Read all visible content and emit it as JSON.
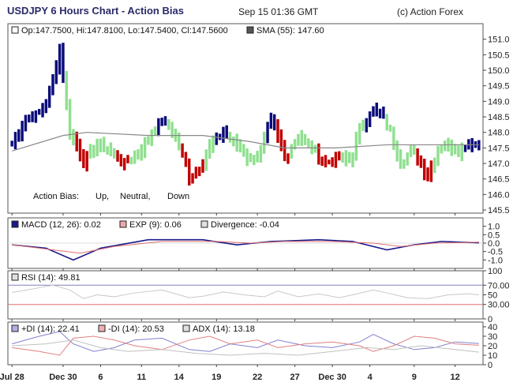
{
  "header": {
    "title": "USDJPY 6 Hours Chart - Action Bias",
    "date": "Sep 15 01:36 GMT",
    "copyright": "(c) Action Forex"
  },
  "colors": {
    "up": "#0b0b7a",
    "neutral": "#90e090",
    "down": "#c00000",
    "sma": "#888888",
    "macd": "#1a1a8a",
    "exp": "#e07070",
    "rsi": "#c8c8c8",
    "plusdi": "#8080d0",
    "minusdi": "#e08080",
    "adx": "#c0c0c0",
    "rsi_high": "#8080c0",
    "rsi_low": "#e07070"
  },
  "chart_data": [
    {
      "panel": "price",
      "type": "bar",
      "legend": [
        "Op:147.7500, Hi:147.8100, Lo:147.5400, Cl:147.5600",
        "SMA (55): 147.60"
      ],
      "bias_legend": {
        "label": "Action Bias:",
        "up": "Up,",
        "neutral": "Neutral,",
        "down": "Down"
      },
      "ylim": [
        145.4,
        151.5
      ],
      "yticks": [
        "151.0",
        "150.5",
        "150.0",
        "149.5",
        "149.0",
        "148.5",
        "148.0",
        "147.5",
        "147.0",
        "146.5",
        "146.0",
        "145.5"
      ],
      "yvals": [
        151.0,
        150.5,
        150.0,
        149.5,
        149.0,
        148.5,
        148.0,
        147.5,
        147.0,
        146.5,
        146.0,
        145.5
      ],
      "xticks": [
        "Jul 28",
        "Dec 30",
        "6",
        "11",
        "14",
        "19",
        "22",
        "27",
        "Dec 30",
        "4",
        "9",
        "12"
      ],
      "anchors": [
        {
          "i": 0,
          "c": 147.6,
          "b": "u"
        },
        {
          "i": 4,
          "c": 148.4,
          "b": "u"
        },
        {
          "i": 8,
          "c": 148.6,
          "b": "u"
        },
        {
          "i": 11,
          "c": 149.2,
          "b": "u"
        },
        {
          "i": 14,
          "c": 150.7,
          "b": "u"
        },
        {
          "i": 17,
          "c": 148.0,
          "b": "n"
        },
        {
          "i": 21,
          "c": 147.1,
          "b": "d"
        },
        {
          "i": 25,
          "c": 147.6,
          "b": "n"
        },
        {
          "i": 29,
          "c": 147.4,
          "b": "n"
        },
        {
          "i": 33,
          "c": 147.0,
          "b": "d"
        },
        {
          "i": 37,
          "c": 147.3,
          "b": "n"
        },
        {
          "i": 41,
          "c": 148.0,
          "b": "n"
        },
        {
          "i": 44,
          "c": 148.4,
          "b": "u"
        },
        {
          "i": 48,
          "c": 147.9,
          "b": "n"
        },
        {
          "i": 52,
          "c": 146.6,
          "b": "d"
        },
        {
          "i": 55,
          "c": 146.9,
          "b": "d"
        },
        {
          "i": 58,
          "c": 147.5,
          "b": "n"
        },
        {
          "i": 62,
          "c": 148.0,
          "b": "u"
        },
        {
          "i": 66,
          "c": 147.6,
          "b": "n"
        },
        {
          "i": 70,
          "c": 147.1,
          "b": "n"
        },
        {
          "i": 73,
          "c": 147.4,
          "b": "n"
        },
        {
          "i": 76,
          "c": 148.4,
          "b": "u"
        },
        {
          "i": 80,
          "c": 147.2,
          "b": "d"
        },
        {
          "i": 84,
          "c": 147.9,
          "b": "n"
        },
        {
          "i": 88,
          "c": 147.5,
          "b": "n"
        },
        {
          "i": 92,
          "c": 147.0,
          "b": "d"
        },
        {
          "i": 95,
          "c": 147.2,
          "b": "d"
        },
        {
          "i": 99,
          "c": 147.1,
          "b": "n"
        },
        {
          "i": 102,
          "c": 148.0,
          "b": "n"
        },
        {
          "i": 105,
          "c": 148.7,
          "b": "u"
        },
        {
          "i": 108,
          "c": 148.6,
          "b": "u"
        },
        {
          "i": 111,
          "c": 148.0,
          "b": "n"
        },
        {
          "i": 114,
          "c": 147.0,
          "b": "n"
        },
        {
          "i": 117,
          "c": 147.4,
          "b": "n"
        },
        {
          "i": 120,
          "c": 147.0,
          "b": "d"
        },
        {
          "i": 122,
          "c": 146.6,
          "b": "d"
        },
        {
          "i": 125,
          "c": 147.5,
          "b": "n"
        },
        {
          "i": 128,
          "c": 147.6,
          "b": "n"
        },
        {
          "i": 131,
          "c": 147.4,
          "b": "n"
        },
        {
          "i": 134,
          "c": 147.7,
          "b": "u"
        },
        {
          "i": 137,
          "c": 147.56,
          "b": "u"
        }
      ],
      "bars_count": 138,
      "sma": [
        [
          0,
          147.4
        ],
        [
          15,
          147.9
        ],
        [
          22,
          148.0
        ],
        [
          40,
          147.9
        ],
        [
          56,
          147.9
        ],
        [
          70,
          147.7
        ],
        [
          80,
          147.5
        ],
        [
          95,
          147.5
        ],
        [
          110,
          147.6
        ],
        [
          125,
          147.6
        ],
        [
          137,
          147.6
        ]
      ]
    },
    {
      "panel": "macd",
      "type": "line",
      "legend": [
        "MACD (12, 26): 0.02",
        "EXP (9): 0.06",
        "Divergence: -0.04"
      ],
      "ylim": [
        -1.5,
        1.5
      ],
      "yticks": [
        "1.0",
        "0.5",
        "0.0",
        "-0.5",
        "-1.0"
      ],
      "yvals": [
        1.0,
        0.5,
        0.0,
        -0.5,
        -1.0
      ],
      "series": [
        {
          "key": "macd",
          "points": [
            [
              0,
              -0.1
            ],
            [
              10,
              -0.3
            ],
            [
              18,
              -1.0
            ],
            [
              26,
              -0.3
            ],
            [
              40,
              0.2
            ],
            [
              56,
              0.2
            ],
            [
              66,
              -0.1
            ],
            [
              76,
              0.1
            ],
            [
              90,
              0.2
            ],
            [
              100,
              0.1
            ],
            [
              110,
              -0.4
            ],
            [
              118,
              -0.1
            ],
            [
              126,
              0.1
            ],
            [
              137,
              0.02
            ]
          ]
        },
        {
          "key": "exp",
          "points": [
            [
              0,
              -0.1
            ],
            [
              12,
              -0.4
            ],
            [
              20,
              -0.6
            ],
            [
              30,
              -0.2
            ],
            [
              44,
              0.1
            ],
            [
              60,
              0.1
            ],
            [
              70,
              0.0
            ],
            [
              80,
              0.1
            ],
            [
              94,
              0.1
            ],
            [
              106,
              0.0
            ],
            [
              114,
              -0.2
            ],
            [
              124,
              0.0
            ],
            [
              137,
              0.06
            ]
          ]
        }
      ]
    },
    {
      "panel": "rsi",
      "type": "line",
      "legend": [
        "RSI (14): 49.81"
      ],
      "ylim": [
        0,
        100
      ],
      "yticks": [
        "100",
        "70.00",
        "50",
        "30.00",
        "0"
      ],
      "yvals": [
        100,
        70,
        50,
        30,
        0
      ],
      "series": [
        {
          "key": "rsi",
          "points": [
            [
              0,
              55
            ],
            [
              6,
              62
            ],
            [
              12,
              70
            ],
            [
              17,
              60
            ],
            [
              21,
              42
            ],
            [
              25,
              50
            ],
            [
              30,
              46
            ],
            [
              36,
              54
            ],
            [
              44,
              60
            ],
            [
              52,
              44
            ],
            [
              56,
              47
            ],
            [
              62,
              56
            ],
            [
              68,
              50
            ],
            [
              74,
              46
            ],
            [
              78,
              58
            ],
            [
              84,
              46
            ],
            [
              90,
              52
            ],
            [
              96,
              44
            ],
            [
              100,
              50
            ],
            [
              106,
              60
            ],
            [
              110,
              54
            ],
            [
              116,
              44
            ],
            [
              122,
              42
            ],
            [
              128,
              50
            ],
            [
              134,
              52
            ],
            [
              137,
              49.81
            ]
          ]
        }
      ]
    },
    {
      "panel": "dmi",
      "type": "line",
      "legend": [
        "+DI (14): 22.41",
        "-DI (14): 20.53",
        "ADX (14): 13.18"
      ],
      "ylim": [
        0,
        45
      ],
      "yticks": [
        "40",
        "30",
        "20",
        "10",
        "0"
      ],
      "yvals": [
        40,
        30,
        20,
        10,
        0
      ],
      "series": [
        {
          "key": "plusdi",
          "points": [
            [
              0,
              22
            ],
            [
              8,
              30
            ],
            [
              14,
              35
            ],
            [
              18,
              22
            ],
            [
              24,
              14
            ],
            [
              30,
              18
            ],
            [
              36,
              26
            ],
            [
              44,
              28
            ],
            [
              52,
              16
            ],
            [
              58,
              14
            ],
            [
              64,
              22
            ],
            [
              72,
              18
            ],
            [
              78,
              26
            ],
            [
              86,
              20
            ],
            [
              94,
              18
            ],
            [
              102,
              24
            ],
            [
              106,
              32
            ],
            [
              112,
              22
            ],
            [
              118,
              16
            ],
            [
              124,
              18
            ],
            [
              130,
              24
            ],
            [
              137,
              22.41
            ]
          ]
        },
        {
          "key": "minusdi",
          "points": [
            [
              0,
              18
            ],
            [
              8,
              14
            ],
            [
              14,
              10
            ],
            [
              18,
              28
            ],
            [
              24,
              30
            ],
            [
              30,
              26
            ],
            [
              36,
              20
            ],
            [
              44,
              16
            ],
            [
              52,
              26
            ],
            [
              58,
              30
            ],
            [
              64,
              22
            ],
            [
              72,
              26
            ],
            [
              78,
              18
            ],
            [
              86,
              22
            ],
            [
              94,
              24
            ],
            [
              102,
              20
            ],
            [
              106,
              14
            ],
            [
              112,
              20
            ],
            [
              118,
              30
            ],
            [
              124,
              28
            ],
            [
              130,
              22
            ],
            [
              137,
              20.53
            ]
          ]
        },
        {
          "key": "adx",
          "points": [
            [
              0,
              20
            ],
            [
              10,
              22
            ],
            [
              18,
              26
            ],
            [
              26,
              18
            ],
            [
              34,
              14
            ],
            [
              44,
              16
            ],
            [
              54,
              12
            ],
            [
              64,
              10
            ],
            [
              74,
              12
            ],
            [
              84,
              10
            ],
            [
              94,
              14
            ],
            [
              104,
              18
            ],
            [
              112,
              16
            ],
            [
              120,
              20
            ],
            [
              130,
              16
            ],
            [
              137,
              13.18
            ]
          ]
        }
      ]
    }
  ]
}
